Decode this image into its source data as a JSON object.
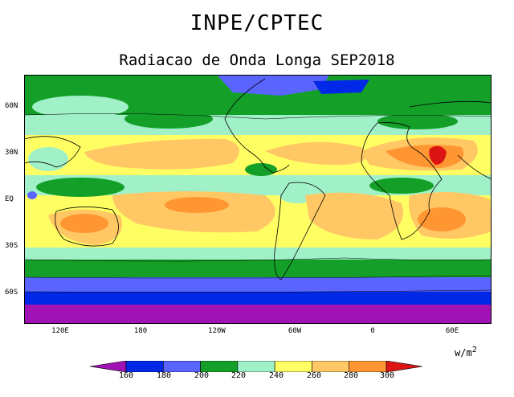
{
  "header": {
    "title": "INPE/CPTEC",
    "subtitle": "Radiacao de Onda Longa SEP2018"
  },
  "map": {
    "variable": "Outgoing longwave radiation",
    "lat_labels": [
      "60N",
      "30N",
      "EQ",
      "30S",
      "60S"
    ],
    "lon_labels": [
      "120E",
      "180",
      "120W",
      "60W",
      "0",
      "60E"
    ]
  },
  "legend": {
    "unit_base": "w/m",
    "unit_exp": "2",
    "thresholds": [
      "160",
      "180",
      "200",
      "220",
      "240",
      "260",
      "280",
      "300"
    ],
    "colors": [
      "#a012b4",
      "#0028e6",
      "#5a64ff",
      "#14a028",
      "#a0f0c8",
      "#ffff64",
      "#ffc864",
      "#ff9632",
      "#dc1414"
    ]
  }
}
